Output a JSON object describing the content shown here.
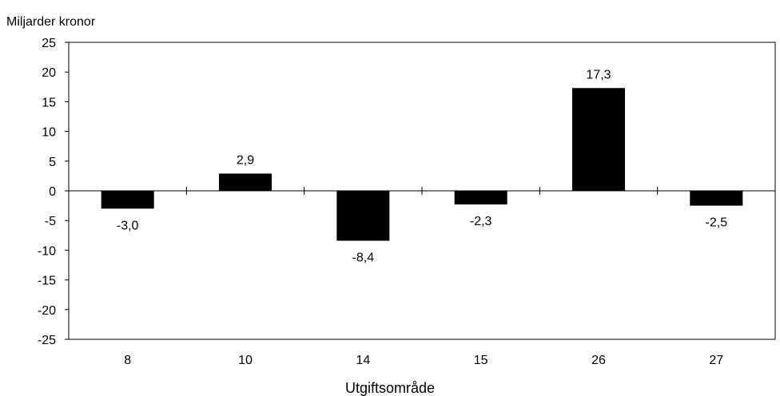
{
  "chart_data": {
    "type": "bar",
    "ylabel": "Miljarder kronor",
    "xlabel": "Utgiftsområde",
    "categories": [
      "8",
      "10",
      "14",
      "15",
      "26",
      "27"
    ],
    "values": [
      -3.0,
      2.9,
      -8.4,
      -2.3,
      17.3,
      -2.5
    ],
    "data_labels": [
      "-3,0",
      "2,9",
      "-8,4",
      "-2,3",
      "17,3",
      "-2,5"
    ],
    "ylim": [
      -25,
      25
    ],
    "yticks": [
      25,
      20,
      15,
      10,
      5,
      0,
      -5,
      -10,
      -15,
      -20,
      -25
    ],
    "grid": false,
    "legend": "none",
    "bar_color": "#000000"
  }
}
